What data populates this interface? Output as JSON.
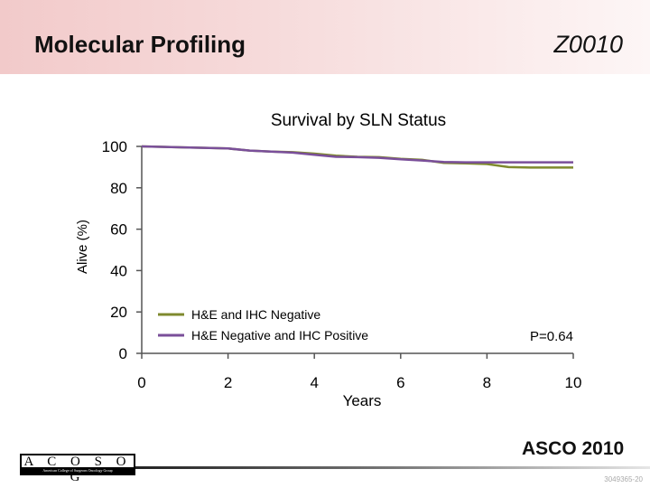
{
  "header": {
    "title": "Molecular Profiling",
    "code": "Z0010"
  },
  "chart_data": {
    "type": "line",
    "title": "Survival by SLN Status",
    "xlabel": "Years",
    "ylabel": "Alive (%)",
    "xlim": [
      0,
      10
    ],
    "ylim": [
      0,
      100
    ],
    "x_ticks": [
      "0",
      "2",
      "4",
      "6",
      "8",
      "10"
    ],
    "y_ticks": [
      "0",
      "20",
      "40",
      "60",
      "80",
      "100"
    ],
    "grid": false,
    "legend_position": "bottom-left",
    "annotation": "P=0.64",
    "series": [
      {
        "name": "H&E and IHC Negative",
        "color": "#7f8a2e",
        "x": [
          0,
          0.5,
          1,
          1.5,
          2,
          2.5,
          3,
          3.5,
          4,
          4.5,
          5,
          5.5,
          6,
          6.5,
          7,
          7.5,
          8,
          8.5,
          9,
          9.5,
          10
        ],
        "y": [
          100,
          99.8,
          99.5,
          99.3,
          99,
          98,
          97.5,
          97.2,
          96.5,
          95.5,
          95,
          94.8,
          94,
          93.5,
          92,
          91.8,
          91.5,
          90,
          89.8,
          89.8,
          89.8
        ]
      },
      {
        "name": "H&E Negative and IHC Positive",
        "color": "#7a4f9a",
        "x": [
          0,
          1,
          2,
          2.5,
          3,
          3.5,
          4,
          4.5,
          5,
          5.5,
          6,
          6.5,
          7,
          7.5,
          8,
          8.5,
          9,
          9.5,
          10
        ],
        "y": [
          100,
          99.5,
          99,
          98,
          97.5,
          97,
          96,
          95,
          94.8,
          94.5,
          93.8,
          93.2,
          92.5,
          92.3,
          92.3,
          92.3,
          92.3,
          92.3,
          92.3
        ]
      }
    ]
  },
  "footer": {
    "meeting": "ASCO 2010",
    "slide_id": "3049365-20"
  },
  "logo": {
    "letters": "A C O S O G",
    "subtitle": "American College of Surgeons Oncology Group"
  }
}
